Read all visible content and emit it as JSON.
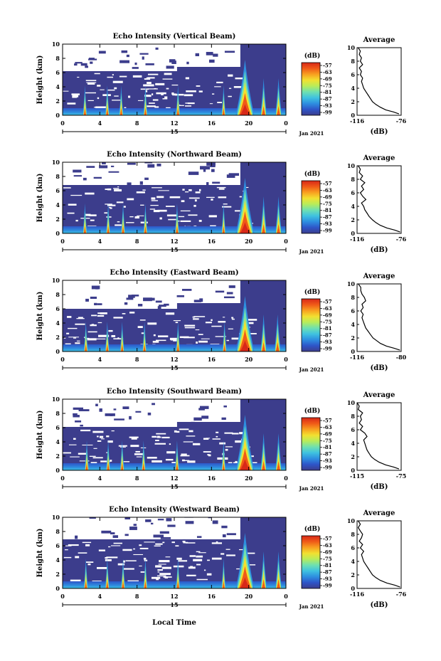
{
  "figure": {
    "x_label": "Local Time",
    "date_label": "Jan 2021",
    "day_label": "15",
    "colorbar_unit": "(dB)",
    "colorbar_ticks": [
      "-57",
      "-63",
      "-69",
      "-75",
      "-81",
      "-87",
      "-93",
      "-99"
    ],
    "colors": {
      "background_echo": "#3c3d8c",
      "colormap": [
        "#3c3d8c",
        "#2e55c8",
        "#2e8ee0",
        "#3fc2e0",
        "#6fe0b0",
        "#b8ec5a",
        "#f2e030",
        "#f8a020",
        "#f05a18",
        "#d82818"
      ]
    }
  },
  "chart_data": [
    {
      "type": "heatmap",
      "title": "Echo Intensity (Vertical Beam)",
      "xlabel": "",
      "ylabel": "Height (km)",
      "xlim": [
        0,
        24
      ],
      "ylim": [
        0,
        10
      ],
      "x_ticks": [
        "0",
        "4",
        "8",
        "12",
        "16",
        "20",
        "0"
      ],
      "y_ticks": [
        "0",
        "2",
        "4",
        "6",
        "8",
        "10"
      ],
      "colorbar": {
        "unit": "(dB)",
        "ticks": [
          "-57",
          "-63",
          "-69",
          "-75",
          "-81",
          "-87",
          "-93",
          "-99"
        ]
      },
      "echo_top_km": 6.2,
      "convective_cells_hour": [
        2.4,
        4.8,
        6.3,
        8.9,
        12.4,
        17.3,
        19.6,
        21.6,
        23.2
      ],
      "average_profile": {
        "title": "Average",
        "xlabel": "(dB)",
        "x_ticks": [
          "-116",
          "-76"
        ],
        "xlim": [
          -116,
          -76
        ],
        "y_ticks": [
          "0",
          "2",
          "4",
          "6",
          "8",
          "10"
        ],
        "height_km": [
          0.2,
          0.5,
          0.8,
          1.2,
          1.6,
          2.0,
          2.5,
          3.0,
          3.5,
          4.0,
          4.5,
          5.0,
          5.5,
          6.0,
          6.5,
          7.0,
          7.5,
          8.0,
          8.5,
          9.0,
          9.5,
          10.0
        ],
        "value_db": [
          -78,
          -83,
          -90,
          -95,
          -99,
          -102,
          -104,
          -106,
          -108,
          -110,
          -111,
          -112,
          -111,
          -113,
          -112,
          -114,
          -111,
          -113,
          -112,
          -114,
          -113,
          -115
        ]
      }
    },
    {
      "type": "heatmap",
      "title": "Echo Intensity (Northward Beam)",
      "xlabel": "",
      "ylabel": "Height (km)",
      "xlim": [
        0,
        24
      ],
      "ylim": [
        0,
        10
      ],
      "x_ticks": [
        "0",
        "4",
        "8",
        "12",
        "16",
        "20",
        "0"
      ],
      "y_ticks": [
        "0",
        "2",
        "4",
        "6",
        "8",
        "10"
      ],
      "colorbar": {
        "unit": "(dB)",
        "ticks": [
          "-57",
          "-63",
          "-69",
          "-75",
          "-81",
          "-87",
          "-93",
          "-99"
        ]
      },
      "echo_top_km": 6.8,
      "convective_cells_hour": [
        2.4,
        4.9,
        6.5,
        8.9,
        12.3,
        17.3,
        19.6,
        21.6,
        23.2
      ],
      "average_profile": {
        "title": "Average",
        "xlabel": "(dB)",
        "x_ticks": [
          "-116",
          "-76"
        ],
        "xlim": [
          -116,
          -76
        ],
        "y_ticks": [
          "0",
          "2",
          "4",
          "6",
          "8",
          "10"
        ],
        "height_km": [
          0.2,
          0.5,
          0.8,
          1.2,
          1.6,
          2.0,
          2.5,
          3.0,
          3.5,
          4.0,
          4.5,
          5.0,
          5.5,
          6.0,
          6.5,
          7.0,
          7.5,
          8.0,
          8.5,
          9.0,
          9.5,
          10.0
        ],
        "value_db": [
          -77,
          -82,
          -89,
          -95,
          -99,
          -102,
          -105,
          -107,
          -109,
          -110,
          -112,
          -108,
          -111,
          -113,
          -110,
          -112,
          -109,
          -113,
          -111,
          -114,
          -113,
          -115
        ]
      }
    },
    {
      "type": "heatmap",
      "title": "Echo Intensity (Eastward Beam)",
      "xlabel": "",
      "ylabel": "Height (km)",
      "xlim": [
        0,
        24
      ],
      "ylim": [
        0,
        10
      ],
      "x_ticks": [
        "0",
        "4",
        "8",
        "12",
        "16",
        "20",
        "0"
      ],
      "y_ticks": [
        "0",
        "2",
        "4",
        "6",
        "8",
        "10"
      ],
      "colorbar": {
        "unit": "(dB)",
        "ticks": [
          "-57",
          "-63",
          "-69",
          "-75",
          "-81",
          "-87",
          "-93",
          "-99"
        ]
      },
      "echo_top_km": 6.0,
      "convective_cells_hour": [
        2.5,
        4.8,
        6.4,
        8.8,
        12.4,
        17.4,
        19.6,
        21.6,
        23.1
      ],
      "average_profile": {
        "title": "Average",
        "xlabel": "(dB)",
        "x_ticks": [
          "-116",
          "-80"
        ],
        "xlim": [
          -116,
          -80
        ],
        "y_ticks": [
          "0",
          "2",
          "4",
          "6",
          "8",
          "10"
        ],
        "height_km": [
          0.2,
          0.5,
          0.8,
          1.2,
          1.6,
          2.0,
          2.5,
          3.0,
          3.5,
          4.0,
          4.5,
          5.0,
          5.5,
          6.0,
          6.5,
          7.0,
          7.5,
          8.0,
          8.5,
          9.0,
          9.5,
          10.0
        ],
        "value_db": [
          -81,
          -86,
          -92,
          -97,
          -100,
          -103,
          -105,
          -107,
          -109,
          -110,
          -111,
          -112,
          -111,
          -113,
          -111,
          -112,
          -109,
          -110,
          -112,
          -113,
          -113,
          -115
        ]
      }
    },
    {
      "type": "heatmap",
      "title": "Echo Intensity (Southward Beam)",
      "xlabel": "",
      "ylabel": "Height (km)",
      "xlim": [
        0,
        24
      ],
      "ylim": [
        0,
        10
      ],
      "x_ticks": [
        "0",
        "4",
        "8",
        "12",
        "16",
        "20",
        "0"
      ],
      "y_ticks": [
        "0",
        "2",
        "4",
        "6",
        "8",
        "10"
      ],
      "colorbar": {
        "unit": "(dB)",
        "ticks": [
          "-57",
          "-63",
          "-69",
          "-75",
          "-81",
          "-87",
          "-93",
          "-99"
        ]
      },
      "echo_top_km": 6.1,
      "convective_cells_hour": [
        2.6,
        4.9,
        6.4,
        8.7,
        12.3,
        17.3,
        19.6,
        21.6,
        23.2
      ],
      "average_profile": {
        "title": "Average",
        "xlabel": "(dB)",
        "x_ticks": [
          "-115",
          "-75"
        ],
        "xlim": [
          -115,
          -75
        ],
        "y_ticks": [
          "0",
          "2",
          "4",
          "6",
          "8",
          "10"
        ],
        "height_km": [
          0.2,
          0.5,
          0.8,
          1.2,
          1.6,
          2.0,
          2.5,
          3.0,
          3.5,
          4.0,
          4.5,
          5.0,
          5.5,
          6.0,
          6.5,
          7.0,
          7.5,
          8.0,
          8.5,
          9.0,
          9.5,
          10.0
        ],
        "value_db": [
          -77,
          -82,
          -89,
          -95,
          -99,
          -102,
          -104,
          -106,
          -107,
          -108,
          -109,
          -106,
          -108,
          -112,
          -110,
          -113,
          -111,
          -112,
          -110,
          -114,
          -113,
          -115
        ]
      }
    },
    {
      "type": "heatmap",
      "title": "Echo Intensity (Westward Beam)",
      "xlabel": "Local Time",
      "ylabel": "Height (km)",
      "xlim": [
        0,
        24
      ],
      "ylim": [
        0,
        10
      ],
      "x_ticks": [
        "0",
        "4",
        "8",
        "12",
        "16",
        "20",
        "0"
      ],
      "y_ticks": [
        "0",
        "2",
        "4",
        "6",
        "8",
        "10"
      ],
      "colorbar": {
        "unit": "(dB)",
        "ticks": [
          "-57",
          "-63",
          "-69",
          "-75",
          "-81",
          "-87",
          "-93",
          "-99"
        ]
      },
      "echo_top_km": 6.9,
      "convective_cells_hour": [
        2.5,
        4.8,
        6.5,
        8.9,
        12.4,
        17.3,
        19.6,
        21.6,
        23.2
      ],
      "average_profile": {
        "title": "Average",
        "xlabel": "(dB)",
        "x_ticks": [
          "-116",
          "-76"
        ],
        "xlim": [
          -116,
          -76
        ],
        "y_ticks": [
          "0",
          "2",
          "4",
          "6",
          "8",
          "10"
        ],
        "height_km": [
          0.2,
          0.5,
          0.8,
          1.2,
          1.6,
          2.0,
          2.5,
          3.0,
          3.5,
          4.0,
          4.5,
          5.0,
          5.5,
          6.0,
          6.5,
          7.0,
          7.5,
          8.0,
          8.5,
          9.0,
          9.5,
          10.0
        ],
        "value_db": [
          -77,
          -82,
          -89,
          -95,
          -99,
          -102,
          -104,
          -106,
          -108,
          -110,
          -111,
          -112,
          -110,
          -113,
          -111,
          -114,
          -112,
          -111,
          -113,
          -115,
          -113,
          -115
        ]
      }
    }
  ]
}
